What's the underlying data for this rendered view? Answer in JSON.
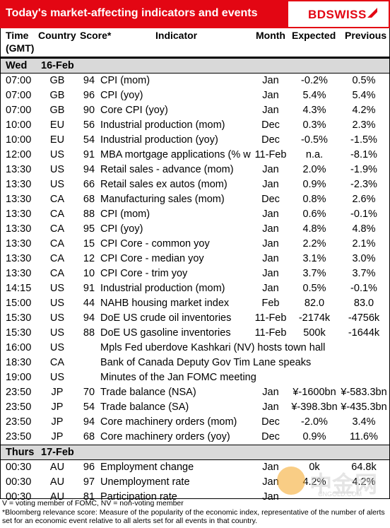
{
  "header": {
    "title": "Today's market-affecting indicators and events",
    "logo": "BDSWISS",
    "brand_color": "#e30613"
  },
  "columns": {
    "time": "Time (GMT)",
    "country": "Country",
    "score": "Score*",
    "indicator": "Indicator",
    "month": "Month",
    "expected": "Expected",
    "previous": "Previous"
  },
  "days": [
    {
      "label": "Wed",
      "date": "16-Feb",
      "rows": [
        {
          "time": "07:00",
          "country": "GB",
          "score": "94",
          "indicator": "CPI (mom)",
          "month": "Jan",
          "expected": "-0.2%",
          "previous": "0.5%"
        },
        {
          "time": "07:00",
          "country": "GB",
          "score": "96",
          "indicator": "CPI (yoy)",
          "month": "Jan",
          "expected": "5.4%",
          "previous": "5.4%"
        },
        {
          "time": "07:00",
          "country": "GB",
          "score": "90",
          "indicator": "Core CPI (yoy)",
          "month": "Jan",
          "expected": "4.3%",
          "previous": "4.2%"
        },
        {
          "time": "10:00",
          "country": "EU",
          "score": "56",
          "indicator": "Industrial production (mom)",
          "month": "Dec",
          "expected": "0.3%",
          "previous": "2.3%"
        },
        {
          "time": "10:00",
          "country": "EU",
          "score": "54",
          "indicator": "Industrial production (yoy)",
          "month": "Dec",
          "expected": "-0.5%",
          "previous": "-1.5%"
        },
        {
          "time": "12:00",
          "country": "US",
          "score": "91",
          "indicator": "MBA mortgage applications (% w",
          "month": "11-Feb",
          "expected": "n.a.",
          "previous": "-8.1%"
        },
        {
          "time": "13:30",
          "country": "US",
          "score": "94",
          "indicator": "Retail sales - advance (mom)",
          "month": "Jan",
          "expected": "2.0%",
          "previous": "-1.9%"
        },
        {
          "time": "13:30",
          "country": "US",
          "score": "66",
          "indicator": "Retail sales ex autos (mom)",
          "month": "Jan",
          "expected": "0.9%",
          "previous": "-2.3%"
        },
        {
          "time": "13:30",
          "country": "CA",
          "score": "68",
          "indicator": "Manufacturing sales (mom)",
          "month": "Dec",
          "expected": "0.8%",
          "previous": "2.6%"
        },
        {
          "time": "13:30",
          "country": "CA",
          "score": "88",
          "indicator": "CPI (mom)",
          "month": "Jan",
          "expected": "0.6%",
          "previous": "-0.1%"
        },
        {
          "time": "13:30",
          "country": "CA",
          "score": "95",
          "indicator": "CPI (yoy)",
          "month": "Jan",
          "expected": "4.8%",
          "previous": "4.8%"
        },
        {
          "time": "13:30",
          "country": "CA",
          "score": "15",
          "indicator": "CPI Core - common yoy",
          "month": "Jan",
          "expected": "2.2%",
          "previous": "2.1%"
        },
        {
          "time": "13:30",
          "country": "CA",
          "score": "12",
          "indicator": "CPI Core - median yoy",
          "month": "Jan",
          "expected": "3.1%",
          "previous": "3.0%"
        },
        {
          "time": "13:30",
          "country": "CA",
          "score": "10",
          "indicator": "CPI Core - trim yoy",
          "month": "Jan",
          "expected": "3.7%",
          "previous": "3.7%"
        },
        {
          "time": "14:15",
          "country": "US",
          "score": "91",
          "indicator": "Industrial production (mom)",
          "month": "Jan",
          "expected": "0.5%",
          "previous": "-0.1%"
        },
        {
          "time": "15:00",
          "country": "US",
          "score": "44",
          "indicator": "NAHB housing market index",
          "month": "Feb",
          "expected": "82.0",
          "previous": "83.0"
        },
        {
          "time": "15:30",
          "country": "US",
          "score": "94",
          "indicator": "DoE US crude oil inventories",
          "month": "11-Feb",
          "expected": "-2174k",
          "previous": "-4756k"
        },
        {
          "time": "15:30",
          "country": "US",
          "score": "88",
          "indicator": "DoE US gasoline inventories",
          "month": "11-Feb",
          "expected": "500k",
          "previous": "-1644k"
        },
        {
          "time": "16:00",
          "country": "US",
          "score": "",
          "indicator": "Mpls Fed uberdove Kashkari (NV) hosts town hall",
          "month": "",
          "expected": "",
          "previous": "",
          "event": true
        },
        {
          "time": "18:30",
          "country": "CA",
          "score": "",
          "indicator": "Bank of Canada Deputy Gov Tim Lane speaks",
          "month": "",
          "expected": "",
          "previous": "",
          "event": true
        },
        {
          "time": "19:00",
          "country": "US",
          "score": "",
          "indicator": "Minutes of the Jan FOMC meeting",
          "month": "",
          "expected": "",
          "previous": "",
          "event": true
        },
        {
          "time": "23:50",
          "country": "JP",
          "score": "70",
          "indicator": "Trade balance (NSA)",
          "month": "Jan",
          "expected": "¥-1600bn",
          "previous": "¥-583.3bn"
        },
        {
          "time": "23:50",
          "country": "JP",
          "score": "54",
          "indicator": "Trade balance (SA)",
          "month": "Jan",
          "expected": "¥-398.3bn",
          "previous": "¥-435.3bn"
        },
        {
          "time": "23:50",
          "country": "JP",
          "score": "94",
          "indicator": "Core machinery orders (mom)",
          "month": "Dec",
          "expected": "-2.0%",
          "previous": "3.4%"
        },
        {
          "time": "23:50",
          "country": "JP",
          "score": "68",
          "indicator": "Core machinery orders (yoy)",
          "month": "Dec",
          "expected": "0.9%",
          "previous": "11.6%"
        }
      ]
    },
    {
      "label": "Thurs",
      "date": "17-Feb",
      "rows": [
        {
          "time": "00:30",
          "country": "AU",
          "score": "96",
          "indicator": "Employment change",
          "month": "Jan",
          "expected": "0k",
          "previous": "64.8k"
        },
        {
          "time": "00:30",
          "country": "AU",
          "score": "97",
          "indicator": "Unemployment rate",
          "month": "Jan",
          "expected": "4.2%",
          "previous": "4.2%"
        },
        {
          "time": "00:30",
          "country": "AU",
          "score": "81",
          "indicator": "Participation rate",
          "month": "Jan",
          "expected": "",
          "previous": ""
        }
      ]
    }
  ],
  "footer": {
    "line1": "V = voting member of FOMC, NV = non-voting member",
    "line2": "*Bloomberg relevance score: Measure of the popularity of the economic index, representative of the number of alerts set for an economic event relative to all alerts set for all events in that country."
  },
  "watermark": {
    "text": "中金网",
    "sub": "CNGOLD.COM"
  }
}
